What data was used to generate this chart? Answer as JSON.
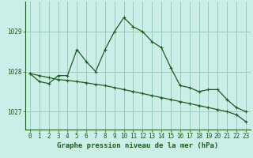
{
  "title": "Graphe pression niveau de la mer (hPa)",
  "background_color": "#cceee8",
  "grid_color": "#99ccbb",
  "line_color": "#1a5c1a",
  "xlim": [
    -0.5,
    23.5
  ],
  "ylim": [
    1026.55,
    1029.75
  ],
  "yticks": [
    1027,
    1028,
    1029
  ],
  "xticks": [
    0,
    1,
    2,
    3,
    4,
    5,
    6,
    7,
    8,
    9,
    10,
    11,
    12,
    13,
    14,
    15,
    16,
    17,
    18,
    19,
    20,
    21,
    22,
    23
  ],
  "series1": [
    1027.95,
    1027.75,
    1027.7,
    1027.9,
    1027.9,
    1028.55,
    1028.25,
    1028.0,
    1028.55,
    1029.0,
    1029.35,
    1029.12,
    1029.0,
    1028.75,
    1028.6,
    1028.1,
    1027.65,
    1027.6,
    1027.5,
    1027.55,
    1027.55,
    1027.3,
    1027.1,
    1027.0
  ],
  "series2": [
    1027.95,
    1027.9,
    1027.85,
    1027.8,
    1027.78,
    1027.75,
    1027.72,
    1027.68,
    1027.65,
    1027.6,
    1027.55,
    1027.5,
    1027.45,
    1027.4,
    1027.35,
    1027.3,
    1027.25,
    1027.2,
    1027.15,
    1027.1,
    1027.05,
    1027.0,
    1026.92,
    1026.75
  ],
  "tick_fontsize": 5.5,
  "title_fontsize": 6.5
}
